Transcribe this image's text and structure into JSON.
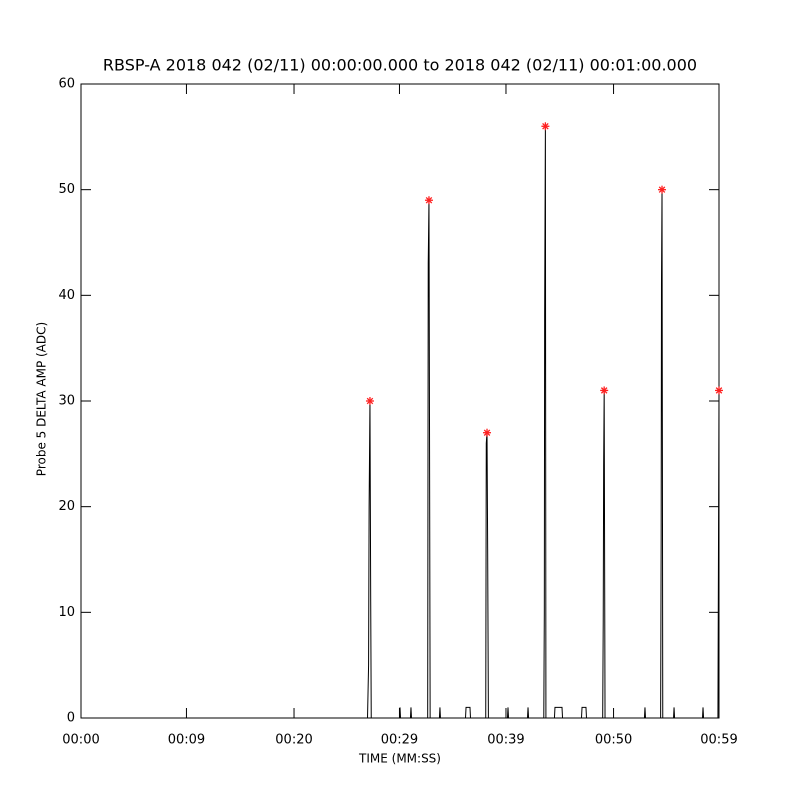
{
  "chart_data": {
    "type": "line",
    "title": "RBSP-A 2018 042 (02/11) 00:00:00.000 to 2018 042 (02/11) 00:01:00.000",
    "x_label": "TIME (MM:SS)",
    "y_label": "Probe 5 DELTA AMP (ADC)",
    "xlim": [
      0,
      59.9
    ],
    "ylim": [
      0,
      60
    ],
    "xticks": [
      {
        "value": 0,
        "label": "00:00"
      },
      {
        "value": 9.9,
        "label": "00:09"
      },
      {
        "value": 20,
        "label": "00:20"
      },
      {
        "value": 29.9,
        "label": "00:29"
      },
      {
        "value": 39.9,
        "label": "00:39"
      },
      {
        "value": 50,
        "label": "00:50"
      },
      {
        "value": 59.9,
        "label": "00:59"
      }
    ],
    "yticks": [
      0,
      10,
      20,
      30,
      40,
      50,
      60
    ],
    "series": [
      {
        "color": "#000000",
        "marker": "none",
        "x": [
          0,
          26.9,
          27.0,
          27.05,
          27.13,
          27.2,
          27.25,
          29.9,
          29.95,
          30.0,
          30.93,
          30.98,
          31.03,
          32.55,
          32.6,
          32.67,
          32.72,
          32.78,
          33.65,
          33.7,
          33.75,
          36.1,
          36.15,
          36.52,
          36.57,
          38.0,
          38.05,
          38.12,
          38.18,
          38.25,
          40.04,
          40.09,
          40.14,
          41.92,
          41.97,
          42.02,
          43.45,
          43.5,
          43.53,
          43.6,
          43.65,
          44.45,
          44.5,
          45.16,
          45.21,
          46.99,
          47.04,
          47.41,
          47.46,
          48.98,
          49.03,
          49.07,
          49.12,
          49.2,
          52.9,
          52.95,
          53.0,
          54.42,
          54.47,
          54.5,
          54.55,
          54.62,
          55.63,
          55.68,
          55.73,
          58.35,
          58.4,
          58.45,
          59.8,
          59.9
        ],
        "values": [
          0,
          0,
          5,
          20,
          30,
          11,
          0,
          0,
          1,
          0,
          0,
          1,
          0,
          0,
          43,
          49,
          28,
          0,
          0,
          1,
          0,
          0,
          1,
          1,
          0,
          0,
          26,
          27,
          16,
          0,
          0,
          1,
          0,
          0,
          1,
          0,
          0,
          10,
          38,
          56,
          0,
          0,
          1,
          1,
          0,
          0,
          1,
          1,
          0,
          0,
          9,
          24,
          31,
          0,
          0,
          1,
          0,
          0,
          17,
          41,
          50,
          0,
          0,
          1,
          0,
          0,
          1,
          0,
          0,
          31
        ]
      },
      {
        "color": "#ff2020",
        "marker": "asterisk",
        "x": [
          27.13,
          32.67,
          38.12,
          43.6,
          49.12,
          54.55,
          59.9
        ],
        "values": [
          30,
          49,
          27,
          56,
          31,
          50,
          31
        ]
      }
    ]
  }
}
